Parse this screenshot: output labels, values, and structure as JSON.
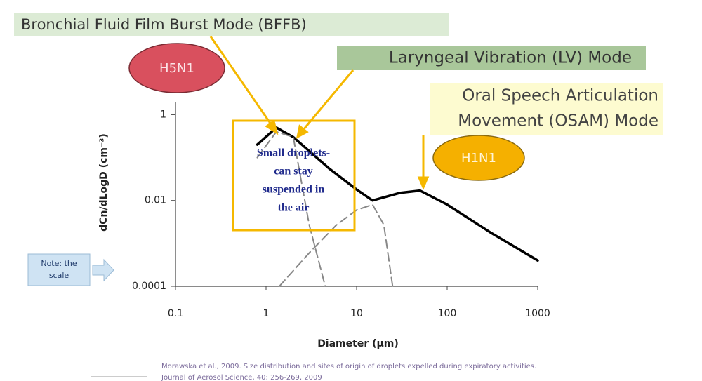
{
  "chart_data": {
    "type": "line",
    "x_label": "Diameter (μm)",
    "y_label": "dCn/dLogD (cm⁻³)",
    "log_x": true,
    "log_y": true,
    "xlim": [
      0.1,
      1000
    ],
    "ylim": [
      0.0001,
      2
    ],
    "xticks": [
      0.1,
      1,
      10,
      100,
      1000
    ],
    "yticks": [
      0.0001,
      0.01,
      1
    ],
    "series": [
      {
        "color": "#000000",
        "style": "solid",
        "x": [
          0.8,
          1.3,
          2,
          5,
          10,
          15,
          30,
          50,
          100,
          300,
          1000
        ],
        "values": [
          0.2,
          0.5,
          0.3,
          0.055,
          0.018,
          0.01,
          0.015,
          0.017,
          0.008,
          0.0018,
          0.0004
        ]
      },
      {
        "color": "#888888",
        "style": "dashed",
        "x": [
          0.8,
          1.3,
          2,
          3,
          4.5
        ],
        "values": [
          0.1,
          0.4,
          0.3,
          0.0027,
          0.0001
        ]
      },
      {
        "color": "#888888",
        "style": "dashed",
        "x": [
          1.4,
          3,
          6,
          10,
          15,
          20,
          25
        ],
        "values": [
          0.0001,
          0.0006,
          0.0027,
          0.006,
          0.008,
          0.0027,
          0.0001
        ]
      }
    ],
    "annotations": [
      {
        "lines": [
          "Bronchial Fluid Film Burst Mode (BFFB)"
        ]
      },
      {
        "lines": [
          "Laryngeal Vibration (LV) Mode"
        ]
      },
      {
        "lines": [
          "Oral Speech Articulation",
          "Movement (OSAM) Mode"
        ]
      },
      {
        "lines": [
          "H5N1"
        ]
      },
      {
        "lines": [
          "H1N1"
        ]
      },
      {
        "lines": [
          "Small droplets-",
          "can stay",
          "suspended in",
          "the air"
        ]
      },
      {
        "lines": [
          "Note: the",
          "scale"
        ]
      }
    ],
    "citation": [
      "Morawska et al., 2009. Size distribution and sites of origin of droplets expelled during expiratory activities.",
      "Journal of Aerosol Science, 40: 256-269, 2009"
    ]
  }
}
